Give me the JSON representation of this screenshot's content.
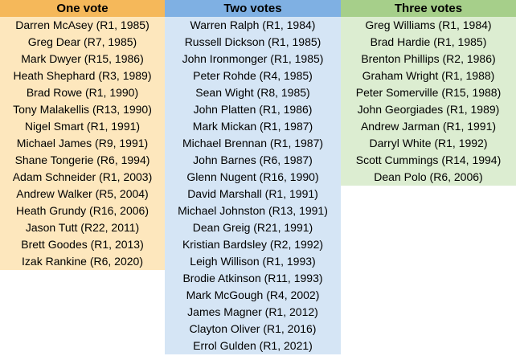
{
  "columns": [
    {
      "header": "One vote",
      "entries": [
        "Darren McAsey (R1, 1985)",
        "Greg Dear (R7, 1985)",
        "Mark Dwyer (R15, 1986)",
        "Heath Shephard (R3, 1989)",
        "Brad Rowe (R1, 1990)",
        "Tony Malakellis (R13, 1990)",
        "Nigel Smart (R1, 1991)",
        "Michael James (R9, 1991)",
        "Shane Tongerie (R6, 1994)",
        "Adam Schneider (R1, 2003)",
        "Andrew Walker (R5, 2004)",
        "Heath Grundy (R16, 2006)",
        "Jason Tutt (R22, 2011)",
        "Brett Goodes (R1, 2013)",
        "Izak Rankine (R6, 2020)"
      ]
    },
    {
      "header": "Two votes",
      "entries": [
        "Warren Ralph (R1, 1984)",
        "Russell Dickson (R1, 1985)",
        "John Ironmonger (R1, 1985)",
        "Peter Rohde (R4, 1985)",
        "Sean Wight (R8, 1985)",
        "John Platten (R1, 1986)",
        "Mark Mickan (R1, 1987)",
        "Michael Brennan (R1, 1987)",
        "John Barnes (R6, 1987)",
        "Glenn Nugent (R16, 1990)",
        "David Marshall (R1, 1991)",
        "Michael Johnston (R13, 1991)",
        "Dean Greig (R21, 1991)",
        "Kristian Bardsley (R2, 1992)",
        "Leigh Willison (R1, 1993)",
        "Brodie Atkinson (R11, 1993)",
        "Mark McGough (R4, 2002)",
        "James Magner (R1, 2012)",
        "Clayton Oliver (R1, 2016)",
        "Errol Gulden (R1, 2021)"
      ]
    },
    {
      "header": "Three votes",
      "entries": [
        "Greg Williams (R1, 1984)",
        "Brad Hardie (R1, 1985)",
        "Brenton Phillips (R2, 1986)",
        "Graham Wright (R1, 1988)",
        "Peter Somerville (R15, 1988)",
        "John Georgiades (R1, 1989)",
        "Andrew Jarman (R1, 1991)",
        "Darryl White (R1, 1992)",
        "Scott Cummings (R14, 1994)",
        "Dean Polo (R6, 2006)"
      ]
    }
  ],
  "colors": {
    "one_header": "#f5b85a",
    "one_cell": "#fde7bd",
    "two_header": "#7fb0e3",
    "two_cell": "#d5e5f5",
    "three_header": "#a6cf8a",
    "three_cell": "#dcedd1"
  }
}
